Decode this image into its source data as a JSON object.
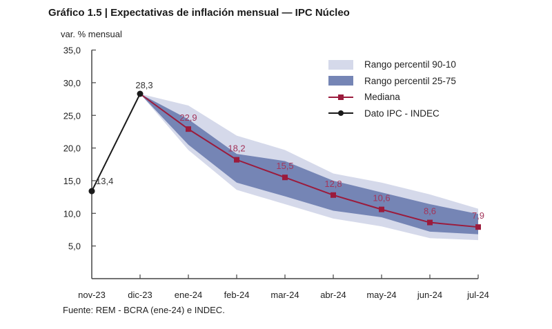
{
  "chart_data": {
    "type": "area",
    "title": "Gráfico 1.5 | Expectativas de inflación mensual — IPC Núcleo",
    "ylabel": "var. % mensual",
    "xlabel": "",
    "source": "Fuente: REM - BCRA (ene-24) e INDEC.",
    "categories": [
      "nov-23",
      "dic-23",
      "ene-24",
      "feb-24",
      "mar-24",
      "abr-24",
      "may-24",
      "jun-24",
      "jul-24"
    ],
    "ylim": [
      0,
      35
    ],
    "yticks": [
      5,
      10,
      15,
      20,
      25,
      30,
      35
    ],
    "ytick_labels": [
      "5,0",
      "10,0",
      "15,0",
      "20,0",
      "25,0",
      "30,0",
      "35,0"
    ],
    "grid": false,
    "legend_position": "top-right",
    "series": [
      {
        "name": "Rango percentil 90-10",
        "kind": "band",
        "color": "#d5d9ea",
        "start_index": 1,
        "upper": [
          28.3,
          26.5,
          21.9,
          19.7,
          16.1,
          14.7,
          12.9,
          10.7
        ],
        "lower": [
          28.3,
          19.7,
          13.6,
          11.4,
          9.2,
          8.0,
          6.2,
          5.9
        ]
      },
      {
        "name": "Rango percentil 25-75",
        "kind": "band",
        "color": "#7585b5",
        "start_index": 1,
        "upper": [
          28.3,
          24.4,
          19.1,
          18.0,
          15.0,
          13.2,
          11.4,
          9.9
        ],
        "lower": [
          28.3,
          20.5,
          14.7,
          12.6,
          10.4,
          9.4,
          7.2,
          6.8
        ]
      },
      {
        "name": "Mediana",
        "kind": "line",
        "color": "#9b1b3c",
        "marker": "square",
        "start_index": 1,
        "values": [
          28.3,
          22.9,
          18.2,
          15.5,
          12.8,
          10.6,
          8.6,
          7.9
        ],
        "labels": [
          "",
          "22,9",
          "18,2",
          "15,5",
          "12,8",
          "10,6",
          "8,6",
          "7,9"
        ]
      },
      {
        "name": "Dato IPC - INDEC",
        "kind": "line",
        "color": "#1a1a1a",
        "marker": "circle",
        "start_index": 0,
        "values": [
          13.4,
          28.3
        ],
        "labels": [
          "13,4",
          "28,3"
        ]
      }
    ],
    "axis_color": "#444444"
  }
}
